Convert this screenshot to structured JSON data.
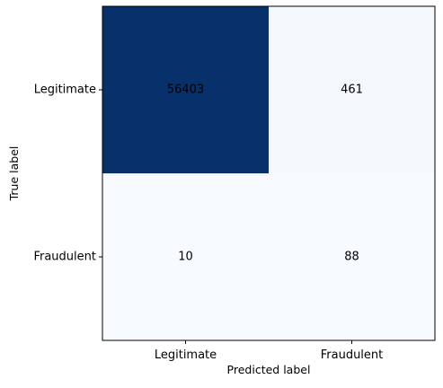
{
  "chart_data": {
    "type": "heatmap",
    "title": "",
    "xlabel": "Predicted label",
    "ylabel": "True label",
    "x_categories": [
      "Legitimate",
      "Fraudulent"
    ],
    "y_categories": [
      "Legitimate",
      "Fraudulent"
    ],
    "values": [
      [
        56403,
        461
      ],
      [
        10,
        88
      ]
    ],
    "colormap": "Blues",
    "color_low": "#f7fbff",
    "color_high": "#08306b",
    "text_color_dark_cell": "#f7fbff",
    "text_color_light_cell": "#08306b",
    "grid": false,
    "colorbar": false
  }
}
